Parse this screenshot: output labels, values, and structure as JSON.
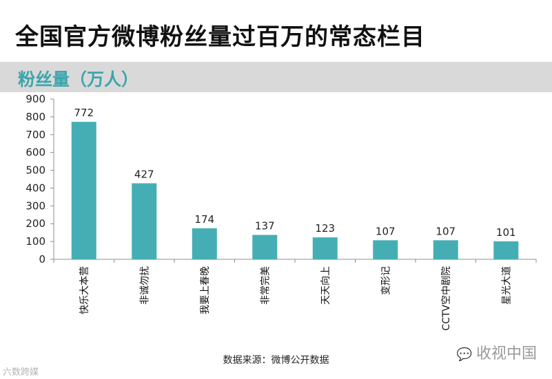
{
  "page": {
    "title": "全国官方微博粉丝量过百万的常态栏目",
    "unit_label": "粉丝量（万人）",
    "source": "数据来源：微博公开数据",
    "watermark_right": "收视中国",
    "watermark_right_icon": "wechat-icon",
    "watermark_left": "六数跨媒"
  },
  "colors": {
    "bar": "#45aeb5",
    "banner": "#d9d9d9",
    "unit_text": "#3aa5ad"
  },
  "chart_data": {
    "type": "bar",
    "title": "",
    "xlabel": "",
    "ylabel": "粉丝量（万人）",
    "ylim": [
      0,
      900
    ],
    "yticks": [
      0,
      100,
      200,
      300,
      400,
      500,
      600,
      700,
      800,
      900
    ],
    "grid": false,
    "categories": [
      "快乐大本营",
      "非诚勿扰",
      "我要上春晚",
      "非常完美",
      "天天向上",
      "变形记",
      "CCTV空中剧院",
      "星光大道"
    ],
    "values": [
      772,
      427,
      174,
      137,
      123,
      107,
      107,
      101
    ],
    "data_labels": [
      "772",
      "427",
      "174",
      "137",
      "123",
      "107",
      "107",
      "101"
    ]
  }
}
